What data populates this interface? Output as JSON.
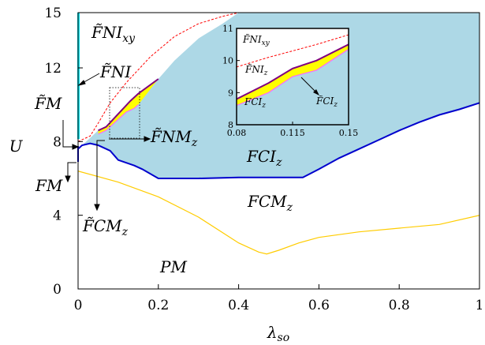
{
  "chart_data": {
    "type": "area",
    "title": "",
    "xlabel": "λ_so",
    "ylabel": "U",
    "xlim": [
      0,
      1
    ],
    "ylim": [
      0,
      15
    ],
    "xticks": [
      0,
      0.2,
      0.4,
      0.6,
      0.8,
      1
    ],
    "xtick_labels": [
      "0",
      "0.2",
      "0.4",
      "0.6",
      "0.8",
      "1"
    ],
    "yticks": [
      0,
      4,
      8,
      12,
      15
    ],
    "ytick_labels": [
      "0",
      "4",
      "8",
      "12",
      "15"
    ],
    "grid": false,
    "colors": {
      "fci_fill": "#add8e6",
      "fci_boundary": "#0000cd",
      "fcmz_boundary": "#ffcc00",
      "fnixy_boundary": "#ff0000",
      "fnmz_band": "#ffff00",
      "fni_boundary": "#800080",
      "fni_boundary_light": "#ff66ff",
      "fm_boundary": "#00e5ee",
      "outline": "#000000"
    },
    "region_labels": {
      "fnixy": "F̃NI",
      "fnixy_sub": "xy",
      "fni": "F̃NI",
      "fm_tilde": "F̃M",
      "fnmz": "F̃NM",
      "fnmz_sub": "z",
      "fciz": "FCI",
      "fciz_sub": "z",
      "fm": "FM",
      "fcmz_tilde": "F̃CM",
      "fcmz_tilde_sub": "z",
      "fcmz": "FCM",
      "fcmz_sub": "z",
      "pm": "PM"
    },
    "series": [
      {
        "key": "fci_lower",
        "x": [
          0,
          0.01,
          0.03,
          0.05,
          0.08,
          0.1,
          0.14,
          0.16,
          0.2,
          0.25,
          0.3,
          0.4,
          0.5,
          0.56,
          0.6,
          0.65,
          0.7,
          0.75,
          0.8,
          0.85,
          0.9,
          0.95,
          1.0
        ],
        "y": [
          7.6,
          7.8,
          7.9,
          7.8,
          7.5,
          7.0,
          6.7,
          6.5,
          6.0,
          6.0,
          6.0,
          6.05,
          6.05,
          6.05,
          6.5,
          7.1,
          7.6,
          8.1,
          8.6,
          9.05,
          9.45,
          9.75,
          10.1
        ]
      },
      {
        "key": "fci_upper",
        "x": [
          0.05,
          0.07,
          0.1,
          0.14,
          0.2,
          0.24,
          0.3,
          0.36,
          0.4
        ],
        "y": [
          8.6,
          8.8,
          9.5,
          10.3,
          11.4,
          12.4,
          13.6,
          14.4,
          15.0
        ]
      },
      {
        "key": "fcmz_upper",
        "x": [
          0,
          0.1,
          0.2,
          0.3,
          0.4,
          0.45,
          0.47,
          0.5,
          0.55,
          0.6,
          0.7,
          0.8,
          0.9,
          1.0
        ],
        "y": [
          6.4,
          5.8,
          5.0,
          3.9,
          2.5,
          2.0,
          1.9,
          2.1,
          2.5,
          2.8,
          3.1,
          3.3,
          3.5,
          4.0
        ]
      },
      {
        "key": "fnixy_boundary",
        "x": [
          0.0,
          0.03,
          0.05,
          0.08,
          0.12,
          0.18,
          0.24,
          0.3,
          0.36,
          0.4
        ],
        "y": [
          8.0,
          8.3,
          9.0,
          10.1,
          11.2,
          12.6,
          13.7,
          14.4,
          14.8,
          15.0
        ]
      },
      {
        "key": "fni_purple",
        "x": [
          0.05,
          0.07,
          0.1,
          0.13,
          0.15,
          0.2
        ],
        "y": [
          8.6,
          8.8,
          9.5,
          10.2,
          10.6,
          11.4
        ]
      },
      {
        "key": "fnmz_band_lower",
        "x": [
          0.05,
          0.07,
          0.1,
          0.12,
          0.14,
          0.15
        ],
        "y": [
          8.4,
          8.6,
          9.2,
          9.6,
          9.8,
          10.0
        ]
      }
    ],
    "inset": {
      "xlim": [
        0.08,
        0.15
      ],
      "ylim": [
        8,
        11
      ],
      "xticks": [
        0.08,
        0.115,
        0.15
      ],
      "xtick_labels": [
        "0.08",
        "0.115",
        "0.15"
      ],
      "yticks": [
        8,
        9,
        10,
        11
      ],
      "ytick_labels": [
        "8",
        "9",
        "10",
        "11"
      ],
      "labels": {
        "fnixy": "F̃NI",
        "fnixy_sub": "xy",
        "fniz": "F̃NI",
        "fniz_sub": "z",
        "fciz": "FCI",
        "fciz_sub": "z",
        "fciz_tilde": "F̃CI",
        "fciz_tilde_sub": "z"
      },
      "series": [
        {
          "key": "inset_red",
          "x": [
            0.08,
            0.1,
            0.115,
            0.13,
            0.15
          ],
          "y": [
            9.8,
            10.1,
            10.3,
            10.5,
            10.8
          ]
        },
        {
          "key": "inset_purple",
          "x": [
            0.08,
            0.1,
            0.115,
            0.13,
            0.15
          ],
          "y": [
            8.8,
            9.3,
            9.75,
            10.0,
            10.5
          ]
        },
        {
          "key": "inset_yellow_lower",
          "x": [
            0.08,
            0.1,
            0.115,
            0.13,
            0.15
          ],
          "y": [
            8.6,
            9.0,
            9.5,
            9.7,
            10.35
          ]
        }
      ]
    }
  }
}
